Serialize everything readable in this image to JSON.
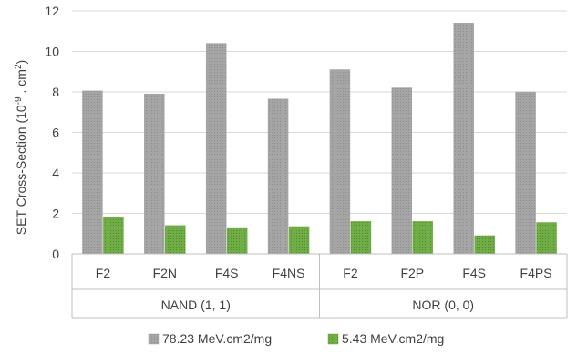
{
  "chart_data": {
    "type": "bar",
    "categories": [
      "F2",
      "F2N",
      "F4S",
      "F4NS",
      "F2",
      "F2P",
      "F4S",
      "F4PS"
    ],
    "groups": [
      {
        "label": "NAND (1, 1)",
        "count": 4
      },
      {
        "label": "NOR (0, 0)",
        "count": 4
      }
    ],
    "series": [
      {
        "name": "78.23 MeV.cm2/mg",
        "color": "#a5a5a5",
        "values": [
          8.05,
          7.9,
          10.4,
          7.65,
          9.1,
          8.2,
          11.4,
          8.0
        ]
      },
      {
        "name": "5.43 MeV.cm2/mg",
        "color": "#70ad47",
        "values": [
          1.8,
          1.4,
          1.3,
          1.35,
          1.6,
          1.6,
          0.9,
          1.55
        ]
      }
    ],
    "ylabel_main": "SET Cross-Section (10",
    "ylabel_sup1": "-9",
    "ylabel_mid": " . cm",
    "ylabel_sup2": "2",
    "ylabel_end": ")",
    "ylim": [
      0,
      12
    ],
    "yticks": [
      0,
      2,
      4,
      6,
      8,
      10,
      12
    ],
    "grid": true,
    "legend_position": "bottom"
  }
}
